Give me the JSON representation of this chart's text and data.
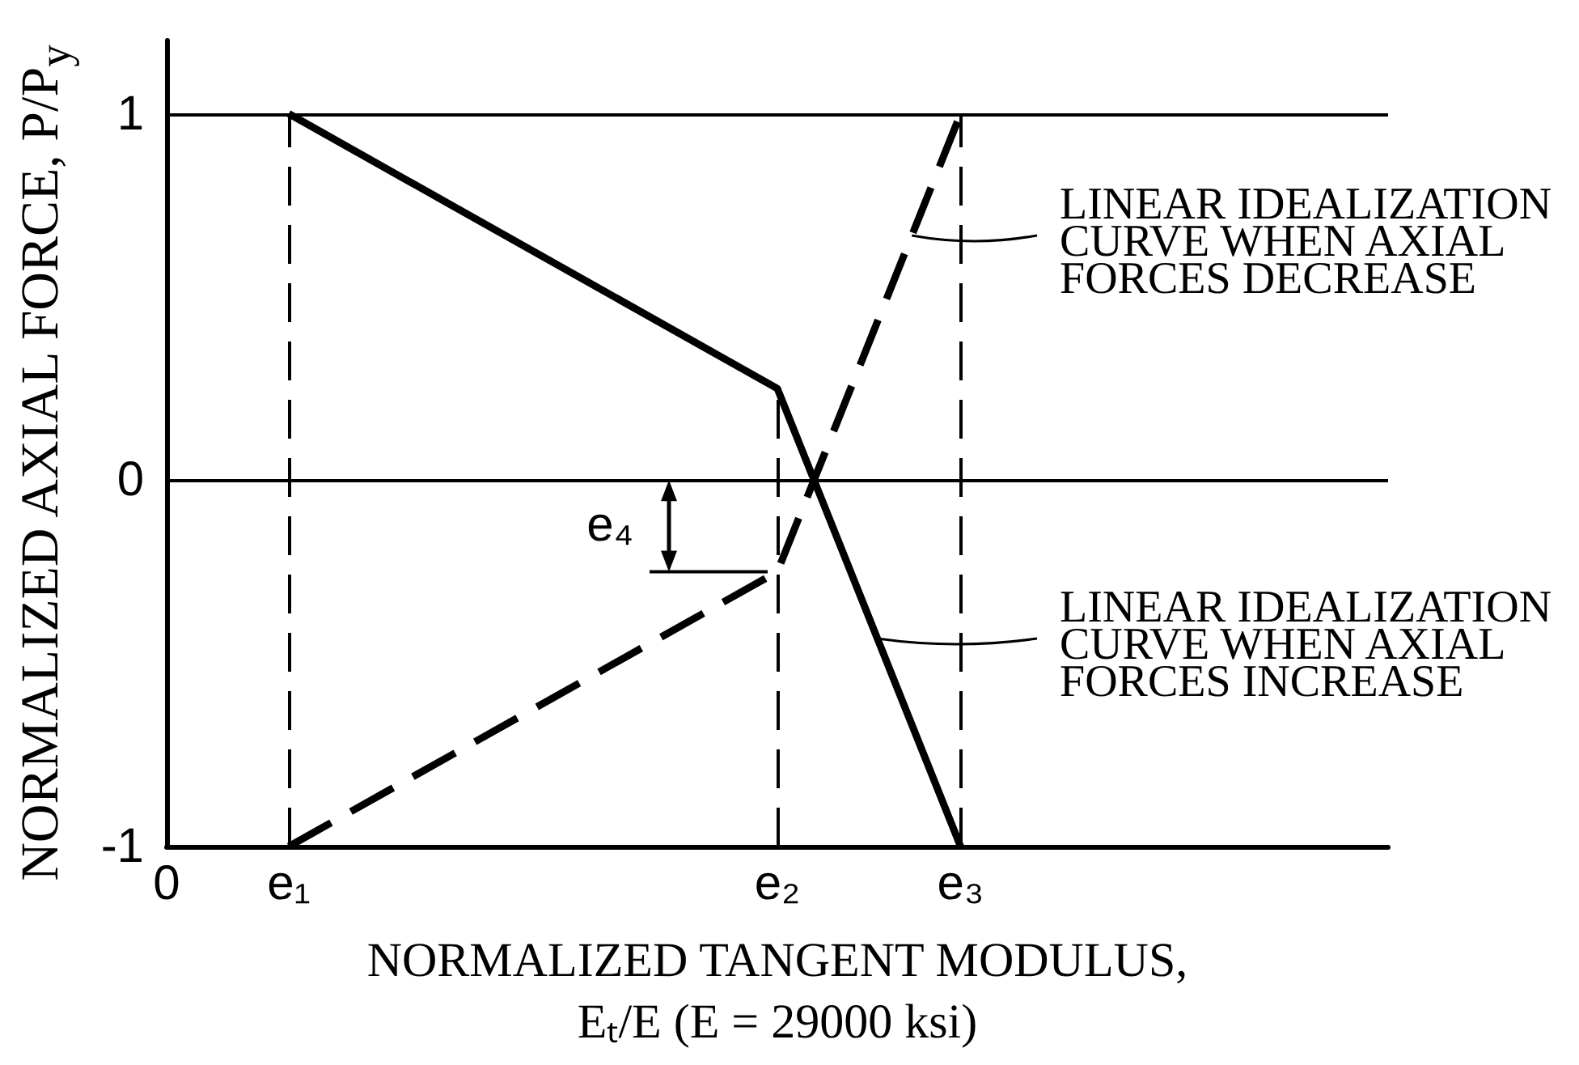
{
  "chart_data": {
    "type": "line",
    "xlabel": "NORMALIZED TANGENT MODULUS,\nEₜ/E (E = 29000 ksi)",
    "ylabel": "NORMALIZED AXIAL FORCE, P/P$_{y}$",
    "categories": [
      "0",
      null,
      "e₁",
      null,
      null,
      null,
      null,
      null,
      null,
      null,
      "e₂",
      null,
      null,
      "e₃",
      null,
      null,
      null,
      null,
      null,
      null,
      null
    ],
    "ylim": [
      -1,
      1.2
    ],
    "yticks": [
      -1,
      0,
      1
    ],
    "grid": "y",
    "marker": "none",
    "series": [
      {
        "color": "#000000",
        "x": [
          "e₁",
          "e₂",
          "e₃"
        ],
        "values": [
          1,
          0.25,
          -1
        ],
        "line_style": "solid"
      },
      {
        "color": "#000000",
        "x": [
          "e₁",
          "e₂",
          "e₃"
        ],
        "values": [
          -1,
          -0.25,
          1
        ],
        "line_style": "dashed"
      }
    ],
    "ref_lines": [
      {
        "axis": "x",
        "value": "e₁",
        "color": "#000000",
        "line_style": "dashed"
      },
      {
        "axis": "x",
        "value": "e₂",
        "color": "#000000",
        "line_style": "dashed"
      },
      {
        "axis": "x",
        "value": "e₃",
        "color": "#000000",
        "line_style": "dashed"
      }
    ],
    "annotations": [
      "LINEAR IDEALIZATION CURVE WHEN AXIAL FORCES DECREASE",
      "LINEAR IDEALIZATION CURVE WHEN AXIAL FORCES INCREASE",
      {
        "text": "e₄",
        "x": "e₂",
        "y": -0.25
      }
    ]
  }
}
